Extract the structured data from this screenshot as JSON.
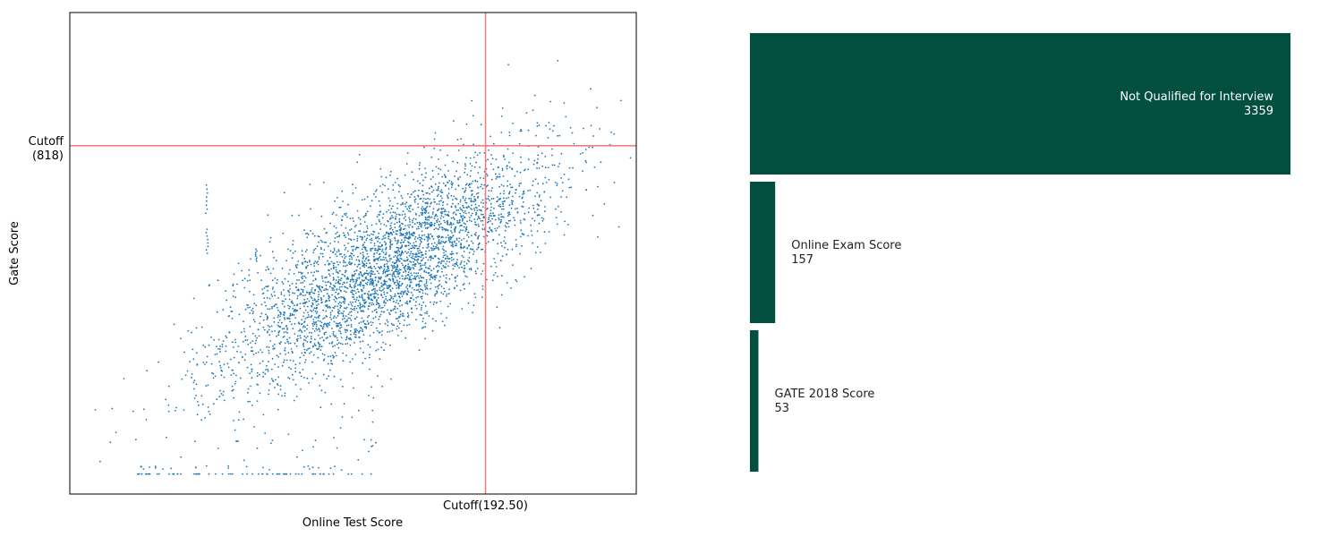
{
  "chart_data": [
    {
      "type": "scatter",
      "xlabel": "Online Test Score",
      "ylabel": "Gate Score",
      "xlim": [
        -35,
        275
      ],
      "ylim": [
        -50,
        1150
      ],
      "xticks": [
        {
          "value": 192.5,
          "label": "Cutoff(192.50)"
        }
      ],
      "yticks": [
        {
          "value": 818,
          "label_lines": [
            "Cutoff",
            "(818)"
          ]
        }
      ],
      "reference_lines": [
        {
          "orientation": "vertical",
          "value": 192.5
        },
        {
          "orientation": "horizontal",
          "value": 818
        }
      ],
      "grid": false,
      "colors": {
        "points": "#1f77b4",
        "cutoff_lines": "#f08080"
      },
      "points": {
        "approx_count": 3600,
        "distribution": "positively correlated cloud centred near (140, 560); floor cluster at Gate Score 0",
        "sample": [
          [
            -21,
            160
          ],
          [
            3,
            0
          ],
          [
            12,
            15
          ],
          [
            22,
            0
          ],
          [
            35,
            180
          ],
          [
            48,
            200
          ],
          [
            55,
            290
          ],
          [
            60,
            380
          ],
          [
            70,
            400
          ],
          [
            75,
            500
          ],
          [
            88,
            450
          ],
          [
            95,
            600
          ],
          [
            105,
            420
          ],
          [
            110,
            680
          ],
          [
            120,
            700
          ],
          [
            125,
            560
          ],
          [
            135,
            610
          ],
          [
            145,
            720
          ],
          [
            150,
            800
          ],
          [
            160,
            700
          ],
          [
            165,
            850
          ],
          [
            175,
            880
          ],
          [
            185,
            930
          ],
          [
            192,
            800
          ],
          [
            205,
            1020
          ],
          [
            215,
            900
          ],
          [
            232,
            1030
          ],
          [
            240,
            850
          ],
          [
            250,
            960
          ],
          [
            255,
            860
          ]
        ]
      }
    },
    {
      "type": "bar",
      "orientation": "horizontal",
      "categories": [
        "Not Qualified for Interview",
        "Online Exam Score",
        "GATE 2018 Score"
      ],
      "values": [
        3359,
        157,
        53
      ],
      "bar_color": "#024f40",
      "axes_visible": false
    }
  ]
}
